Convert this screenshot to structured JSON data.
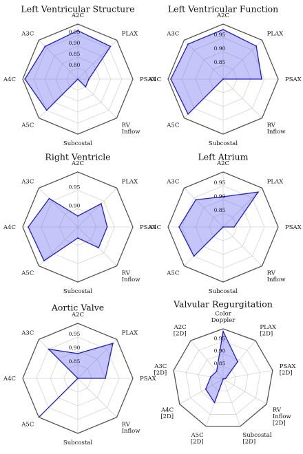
{
  "chart_data": [
    {
      "type": "radar",
      "title": "Left Ventricular Structure",
      "axes": [
        "A2C",
        "PLAX",
        "PSAX",
        "RV\nInflow",
        "Subcostal",
        "A5C",
        "A4C",
        "A3C"
      ],
      "rlim": [
        0.75,
        1.0
      ],
      "ticks": [
        0.8,
        0.85,
        0.9,
        0.95
      ],
      "tick_labels": [
        "0.80",
        "0.85",
        "0.90",
        "0.95"
      ],
      "values": [
        0.97,
        0.96,
        0.8,
        0.8,
        0.75,
        0.95,
        0.99,
        0.96
      ],
      "grid": true
    },
    {
      "type": "radar",
      "title": "Left Ventricular Function",
      "axes": [
        "A2C",
        "PLAX",
        "PSAX",
        "RV\nInflow",
        "Subcostal",
        "A5C",
        "A4C",
        "A3C"
      ],
      "rlim": [
        0.8,
        1.0
      ],
      "ticks": [
        0.85,
        0.9,
        0.95
      ],
      "tick_labels": [
        "0.85",
        "0.90",
        "0.95"
      ],
      "values": [
        0.98,
        0.97,
        0.94,
        0.8,
        0.8,
        0.98,
        0.99,
        0.98
      ],
      "grid": true
    },
    {
      "type": "radar",
      "title": "Right Ventricle",
      "axes": [
        "A2C",
        "PLAX",
        "PSAX",
        "RV\nInflow",
        "Subcostal",
        "A5C",
        "A4C",
        "A3C"
      ],
      "rlim": [
        0.85,
        1.0
      ],
      "ticks": [
        0.9,
        0.95
      ],
      "tick_labels": [
        "0.90",
        "0.95"
      ],
      "values": [
        0.88,
        0.94,
        0.93,
        0.93,
        0.88,
        0.98,
        0.985,
        0.96
      ],
      "grid": true
    },
    {
      "type": "radar",
      "title": "Left Atrium",
      "axes": [
        "A2C",
        "PLAX",
        "PSAX",
        "RV\nInflow",
        "Subcostal",
        "A5C",
        "A4C",
        "A3C"
      ],
      "rlim": [
        0.8,
        1.0
      ],
      "ticks": [
        0.85,
        0.9,
        0.95
      ],
      "tick_labels": [
        "0.85",
        "0.90",
        "0.95"
      ],
      "values": [
        0.91,
        0.98,
        0.84,
        0.8,
        0.8,
        0.95,
        0.96,
        0.94
      ],
      "grid": true
    },
    {
      "type": "radar",
      "title": "Aortic Valve",
      "axes": [
        "A2C",
        "PLAX",
        "PSAX",
        "RV\nInflow",
        "Subcostal",
        "A5C",
        "A4C",
        "A3C"
      ],
      "rlim": [
        0.8,
        1.0
      ],
      "ticks": [
        0.85,
        0.9,
        0.95
      ],
      "tick_labels": [
        "0.85",
        "0.90",
        "0.95"
      ],
      "values": [
        0.89,
        0.98,
        0.9,
        0.8,
        0.8,
        0.995,
        0.8,
        0.95
      ],
      "grid": true
    },
    {
      "type": "radar",
      "title": "Valvular Regurgitation",
      "axes": [
        "Color\nDoppler",
        "PLAX\n[2D]",
        "PSAX\n[2D]",
        "RV\nInflow\n[2D]",
        "Subcostal\n[2D]",
        "A5C\n[2D]",
        "A4C\n[2D]",
        "A3C\n[2D]",
        "A2C\n[2D]"
      ],
      "rlim": [
        0.8,
        1.0
      ],
      "ticks": [
        0.85,
        0.9,
        0.95
      ],
      "tick_labels": [
        "0.85",
        "0.90",
        "0.95"
      ],
      "values": [
        0.99,
        0.89,
        0.81,
        0.8,
        0.8,
        0.9,
        0.88,
        0.85,
        0.84
      ],
      "grid": true
    }
  ]
}
